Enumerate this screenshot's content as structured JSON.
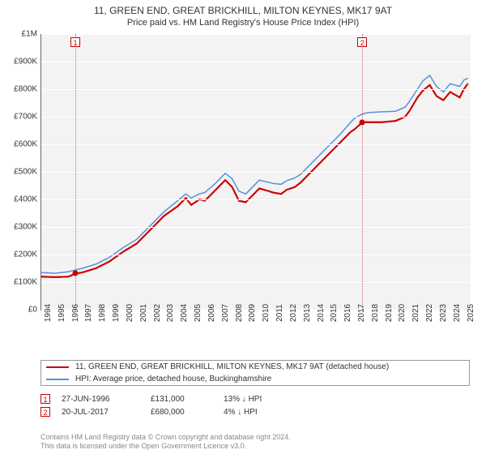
{
  "title": "11, GREEN END, GREAT BRICKHILL, MILTON KEYNES, MK17 9AT",
  "subtitle": "Price paid vs. HM Land Registry's House Price Index (HPI)",
  "chart": {
    "type": "line",
    "background_color": "#f3f3f3",
    "grid_color": "#ffffff",
    "axis_color": "#666666",
    "xlim": [
      1994,
      2025.5
    ],
    "ylim": [
      0,
      1000000
    ],
    "ytick_step": 100000,
    "yticks": [
      "£0",
      "£100K",
      "£200K",
      "£300K",
      "£400K",
      "£500K",
      "£600K",
      "£700K",
      "£800K",
      "£900K",
      "£1M"
    ],
    "xticks": [
      "1994",
      "1995",
      "1996",
      "1997",
      "1998",
      "1999",
      "2000",
      "2001",
      "2002",
      "2003",
      "2004",
      "2005",
      "2006",
      "2007",
      "2008",
      "2009",
      "2010",
      "2011",
      "2012",
      "2013",
      "2014",
      "2015",
      "2016",
      "2017",
      "2018",
      "2019",
      "2020",
      "2021",
      "2022",
      "2023",
      "2024",
      "2025"
    ],
    "label_fontsize": 10,
    "series": [
      {
        "name": "price_paid",
        "color": "#cc0000",
        "width": 2,
        "points": [
          [
            1994.0,
            120000
          ],
          [
            1995.0,
            118000
          ],
          [
            1996.0,
            120000
          ],
          [
            1996.5,
            131000
          ],
          [
            1997.0,
            135000
          ],
          [
            1998.0,
            150000
          ],
          [
            1999.0,
            175000
          ],
          [
            2000.0,
            210000
          ],
          [
            2001.0,
            240000
          ],
          [
            2002.0,
            290000
          ],
          [
            2003.0,
            340000
          ],
          [
            2004.0,
            375000
          ],
          [
            2004.6,
            405000
          ],
          [
            2005.0,
            380000
          ],
          [
            2005.6,
            400000
          ],
          [
            2006.0,
            395000
          ],
          [
            2006.7,
            430000
          ],
          [
            2007.5,
            470000
          ],
          [
            2008.0,
            445000
          ],
          [
            2008.5,
            395000
          ],
          [
            2009.0,
            390000
          ],
          [
            2009.5,
            415000
          ],
          [
            2010.0,
            440000
          ],
          [
            2010.7,
            430000
          ],
          [
            2011.0,
            425000
          ],
          [
            2011.6,
            420000
          ],
          [
            2012.0,
            435000
          ],
          [
            2012.6,
            445000
          ],
          [
            2013.0,
            460000
          ],
          [
            2014.0,
            510000
          ],
          [
            2015.0,
            560000
          ],
          [
            2016.0,
            610000
          ],
          [
            2016.7,
            645000
          ],
          [
            2017.0,
            655000
          ],
          [
            2017.55,
            680000
          ],
          [
            2018.0,
            680000
          ],
          [
            2019.0,
            680000
          ],
          [
            2020.0,
            685000
          ],
          [
            2020.7,
            700000
          ],
          [
            2021.0,
            720000
          ],
          [
            2021.6,
            770000
          ],
          [
            2022.0,
            795000
          ],
          [
            2022.5,
            815000
          ],
          [
            2023.0,
            775000
          ],
          [
            2023.5,
            760000
          ],
          [
            2024.0,
            790000
          ],
          [
            2024.7,
            770000
          ],
          [
            2025.0,
            800000
          ],
          [
            2025.3,
            820000
          ]
        ]
      },
      {
        "name": "hpi",
        "color": "#5b8fd6",
        "width": 1.5,
        "points": [
          [
            1994.0,
            135000
          ],
          [
            1995.0,
            132000
          ],
          [
            1996.0,
            138000
          ],
          [
            1997.0,
            150000
          ],
          [
            1998.0,
            165000
          ],
          [
            1999.0,
            190000
          ],
          [
            2000.0,
            225000
          ],
          [
            2001.0,
            255000
          ],
          [
            2002.0,
            305000
          ],
          [
            2003.0,
            355000
          ],
          [
            2004.0,
            395000
          ],
          [
            2004.6,
            420000
          ],
          [
            2005.0,
            405000
          ],
          [
            2005.6,
            420000
          ],
          [
            2006.0,
            425000
          ],
          [
            2006.7,
            455000
          ],
          [
            2007.5,
            495000
          ],
          [
            2008.0,
            475000
          ],
          [
            2008.5,
            430000
          ],
          [
            2009.0,
            420000
          ],
          [
            2009.5,
            445000
          ],
          [
            2010.0,
            470000
          ],
          [
            2010.7,
            462000
          ],
          [
            2011.0,
            458000
          ],
          [
            2011.6,
            455000
          ],
          [
            2012.0,
            468000
          ],
          [
            2012.6,
            478000
          ],
          [
            2013.0,
            490000
          ],
          [
            2014.0,
            540000
          ],
          [
            2015.0,
            590000
          ],
          [
            2016.0,
            640000
          ],
          [
            2016.7,
            680000
          ],
          [
            2017.0,
            695000
          ],
          [
            2017.55,
            710000
          ],
          [
            2018.0,
            715000
          ],
          [
            2019.0,
            718000
          ],
          [
            2020.0,
            720000
          ],
          [
            2020.7,
            735000
          ],
          [
            2021.0,
            755000
          ],
          [
            2021.6,
            800000
          ],
          [
            2022.0,
            830000
          ],
          [
            2022.5,
            850000
          ],
          [
            2023.0,
            810000
          ],
          [
            2023.5,
            790000
          ],
          [
            2024.0,
            820000
          ],
          [
            2024.7,
            810000
          ],
          [
            2025.0,
            833000
          ],
          [
            2025.3,
            840000
          ]
        ]
      }
    ],
    "event_markers": [
      {
        "num": "1",
        "x": 1996.5,
        "y": 131000,
        "vline": true
      },
      {
        "num": "2",
        "x": 2017.55,
        "y": 680000,
        "vline": true
      }
    ],
    "marker_box_border": "#cc0000",
    "marker_dot_color": "#cc0000",
    "vline_color": "#cc6666"
  },
  "legend": {
    "items": [
      {
        "color": "#cc0000",
        "label": "11, GREEN END, GREAT BRICKHILL, MILTON KEYNES, MK17 9AT (detached house)"
      },
      {
        "color": "#5b8fd6",
        "label": "HPI: Average price, detached house, Buckinghamshire"
      }
    ]
  },
  "events": [
    {
      "num": "1",
      "date": "27-JUN-1996",
      "price": "£131,000",
      "pct": "13% ↓ HPI"
    },
    {
      "num": "2",
      "date": "20-JUL-2017",
      "price": "£680,000",
      "pct": "4% ↓ HPI"
    }
  ],
  "footer": {
    "line1": "Contains HM Land Registry data © Crown copyright and database right 2024.",
    "line2": "This data is licensed under the Open Government Licence v3.0."
  }
}
